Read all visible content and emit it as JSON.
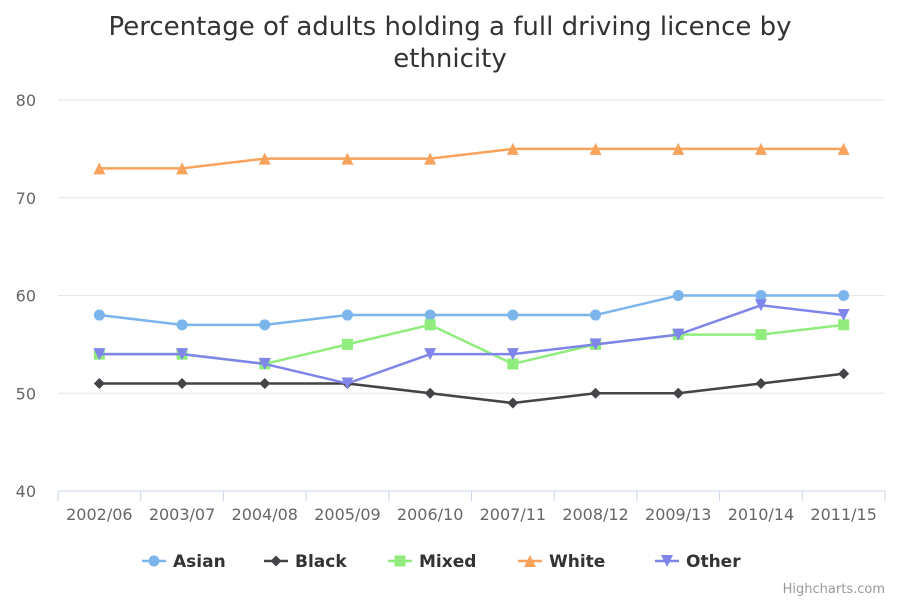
{
  "chart_data": {
    "type": "line",
    "title_lines": [
      "Percentage of adults holding a full driving licence by",
      "ethnicity"
    ],
    "xlabel": "",
    "ylabel": "",
    "categories": [
      "2002/06",
      "2003/07",
      "2004/08",
      "2005/09",
      "2006/10",
      "2007/11",
      "2008/12",
      "2009/13",
      "2010/14",
      "2011/15"
    ],
    "ylim": [
      40,
      80
    ],
    "yticks": [
      40,
      50,
      60,
      70,
      80
    ],
    "grid": true,
    "legend_position": "bottom-center",
    "series": [
      {
        "name": "Asian",
        "color": "#7cb5ec",
        "marker": "circle",
        "values": [
          58,
          57,
          57,
          58,
          58,
          58,
          58,
          60,
          60,
          60
        ]
      },
      {
        "name": "Black",
        "color": "#434348",
        "marker": "diamond",
        "values": [
          51,
          51,
          51,
          51,
          50,
          49,
          50,
          50,
          51,
          52
        ]
      },
      {
        "name": "Mixed",
        "color": "#90ed7d",
        "marker": "square",
        "values": [
          54,
          54,
          53,
          55,
          57,
          53,
          55,
          56,
          56,
          57
        ]
      },
      {
        "name": "White",
        "color": "#f7a35c",
        "marker": "triangle",
        "values": [
          73,
          73,
          74,
          74,
          74,
          75,
          75,
          75,
          75,
          75
        ]
      },
      {
        "name": "Other",
        "color": "#8085e9",
        "marker": "triangle-down",
        "values": [
          54,
          54,
          53,
          51,
          54,
          54,
          55,
          56,
          59,
          58
        ]
      }
    ]
  },
  "credits": "Highcharts.com"
}
